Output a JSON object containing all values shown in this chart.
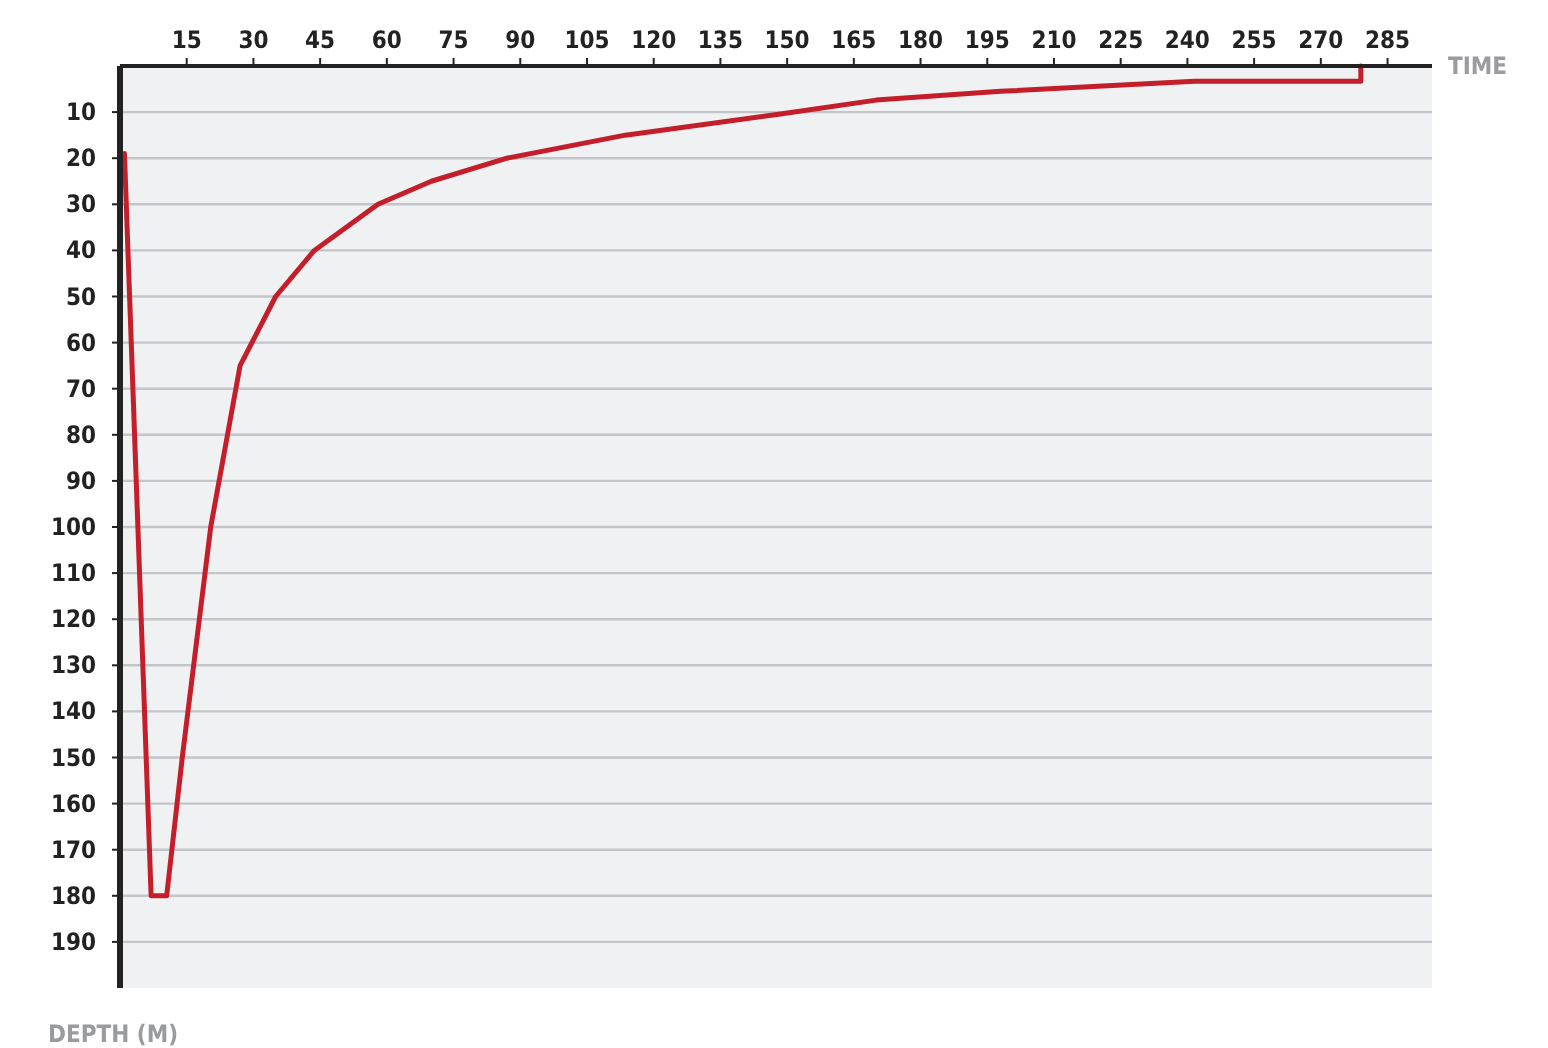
{
  "chart_data": {
    "type": "line",
    "xlabel": "TIME",
    "ylabel": "DEPTH (M)",
    "xlim": [
      0,
      295
    ],
    "xticks": [
      15,
      30,
      45,
      60,
      75,
      90,
      105,
      120,
      135,
      150,
      165,
      180,
      195,
      210,
      225,
      240,
      255,
      270,
      285
    ],
    "ylim": [
      200,
      0
    ],
    "yticks": [
      10,
      20,
      30,
      40,
      50,
      60,
      70,
      80,
      90,
      100,
      110,
      120,
      130,
      140,
      150,
      160,
      170,
      180,
      190
    ],
    "grid": "y",
    "marker": "none",
    "line_style": "solid",
    "series": [
      {
        "color": "#c41e2a",
        "x": [
          1,
          7,
          10.5,
          14,
          20.4,
          27,
          35,
          43.7,
          58,
          70,
          87,
          113.6,
          148.5,
          170,
          198,
          241.6,
          279,
          279
        ],
        "values": [
          19,
          180,
          180,
          150,
          100,
          65,
          50,
          40,
          30,
          25,
          20,
          15,
          10.4,
          7.4,
          5.5,
          3.3,
          3.3,
          0
        ]
      }
    ]
  }
}
